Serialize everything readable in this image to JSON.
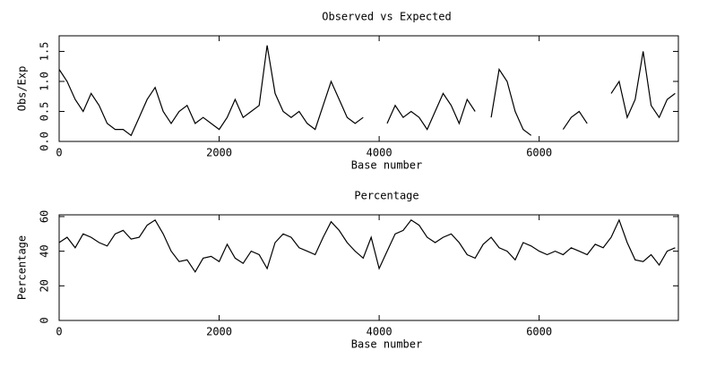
{
  "chart_data": [
    {
      "type": "line",
      "title": "Observed vs Expected",
      "xlabel": "Base number",
      "ylabel": "Obs/Exp",
      "xlim": [
        0,
        7740
      ],
      "ylim": [
        0,
        1.76
      ],
      "xticks": [
        0,
        2000,
        4000,
        6000
      ],
      "yticks": [
        {
          "value": 0,
          "label": "0.0"
        },
        0.5,
        {
          "value": 1,
          "label": "1.0"
        },
        1.5
      ],
      "x": [
        0,
        100,
        200,
        300,
        400,
        500,
        600,
        700,
        800,
        900,
        1000,
        1100,
        1200,
        1300,
        1400,
        1500,
        1600,
        1700,
        1800,
        1900,
        2000,
        2100,
        2200,
        2300,
        2400,
        2500,
        2600,
        2700,
        2800,
        2900,
        3000,
        3100,
        3200,
        3300,
        3400,
        3500,
        3600,
        3700,
        3800,
        3900,
        4000,
        4100,
        4200,
        4300,
        4400,
        4500,
        4600,
        4700,
        4800,
        4900,
        5000,
        5100,
        5200,
        5300,
        5400,
        5500,
        5600,
        5700,
        5800,
        5900,
        6000,
        6100,
        6200,
        6300,
        6400,
        6500,
        6600,
        6700,
        6800,
        6900,
        7000,
        7100,
        7200,
        7300,
        7400,
        7500,
        7600,
        7700
      ],
      "series": [
        {
          "color": "#000000",
          "values": [
            1.2,
            1.0,
            0.7,
            0.5,
            0.8,
            0.6,
            0.3,
            0.2,
            0.2,
            0.1,
            0.4,
            0.7,
            0.9,
            0.5,
            0.3,
            0.5,
            0.6,
            0.3,
            0.4,
            0.3,
            0.2,
            0.4,
            0.7,
            0.4,
            0.5,
            0.6,
            1.6,
            0.8,
            0.5,
            0.4,
            0.5,
            0.3,
            0.2,
            0.6,
            1.0,
            0.7,
            0.4,
            0.3,
            0.4,
            null,
            null,
            0.3,
            0.6,
            0.4,
            0.5,
            0.4,
            0.2,
            0.5,
            0.8,
            0.6,
            0.3,
            0.7,
            0.5,
            null,
            0.4,
            1.2,
            1.0,
            0.5,
            0.2,
            0.1,
            null,
            null,
            null,
            0.2,
            0.4,
            0.5,
            0.3,
            null,
            null,
            0.8,
            1.0,
            0.4,
            0.7,
            1.5,
            0.6,
            0.4,
            0.7,
            0.8
          ]
        }
      ]
    },
    {
      "type": "line",
      "title": "Percentage",
      "xlabel": "Base number",
      "ylabel": "Percentage",
      "xlim": [
        0,
        7740
      ],
      "ylim": [
        0,
        61
      ],
      "xticks": [
        0,
        2000,
        4000,
        6000
      ],
      "yticks": [
        0,
        20,
        40,
        60
      ],
      "x": [
        0,
        100,
        200,
        300,
        400,
        500,
        600,
        700,
        800,
        900,
        1000,
        1100,
        1200,
        1300,
        1400,
        1500,
        1600,
        1700,
        1800,
        1900,
        2000,
        2100,
        2200,
        2300,
        2400,
        2500,
        2600,
        2700,
        2800,
        2900,
        3000,
        3100,
        3200,
        3300,
        3400,
        3500,
        3600,
        3700,
        3800,
        3900,
        4000,
        4100,
        4200,
        4300,
        4400,
        4500,
        4600,
        4700,
        4800,
        4900,
        5000,
        5100,
        5200,
        5300,
        5400,
        5500,
        5600,
        5700,
        5800,
        5900,
        6000,
        6100,
        6200,
        6300,
        6400,
        6500,
        6600,
        6700,
        6800,
        6900,
        7000,
        7100,
        7200,
        7300,
        7400,
        7500,
        7600,
        7700
      ],
      "series": [
        {
          "color": "#000000",
          "values": [
            45,
            48,
            42,
            50,
            48,
            45,
            43,
            50,
            52,
            47,
            48,
            55,
            58,
            50,
            40,
            34,
            35,
            28,
            36,
            37,
            34,
            44,
            36,
            33,
            40,
            38,
            30,
            45,
            50,
            48,
            42,
            40,
            38,
            48,
            57,
            52,
            45,
            40,
            36,
            48,
            30,
            40,
            50,
            52,
            58,
            55,
            48,
            45,
            48,
            50,
            45,
            38,
            36,
            44,
            48,
            42,
            40,
            35,
            45,
            43,
            40,
            38,
            40,
            38,
            42,
            40,
            38,
            44,
            42,
            48,
            58,
            45,
            35,
            34,
            38,
            32,
            40,
            42
          ]
        }
      ]
    }
  ]
}
